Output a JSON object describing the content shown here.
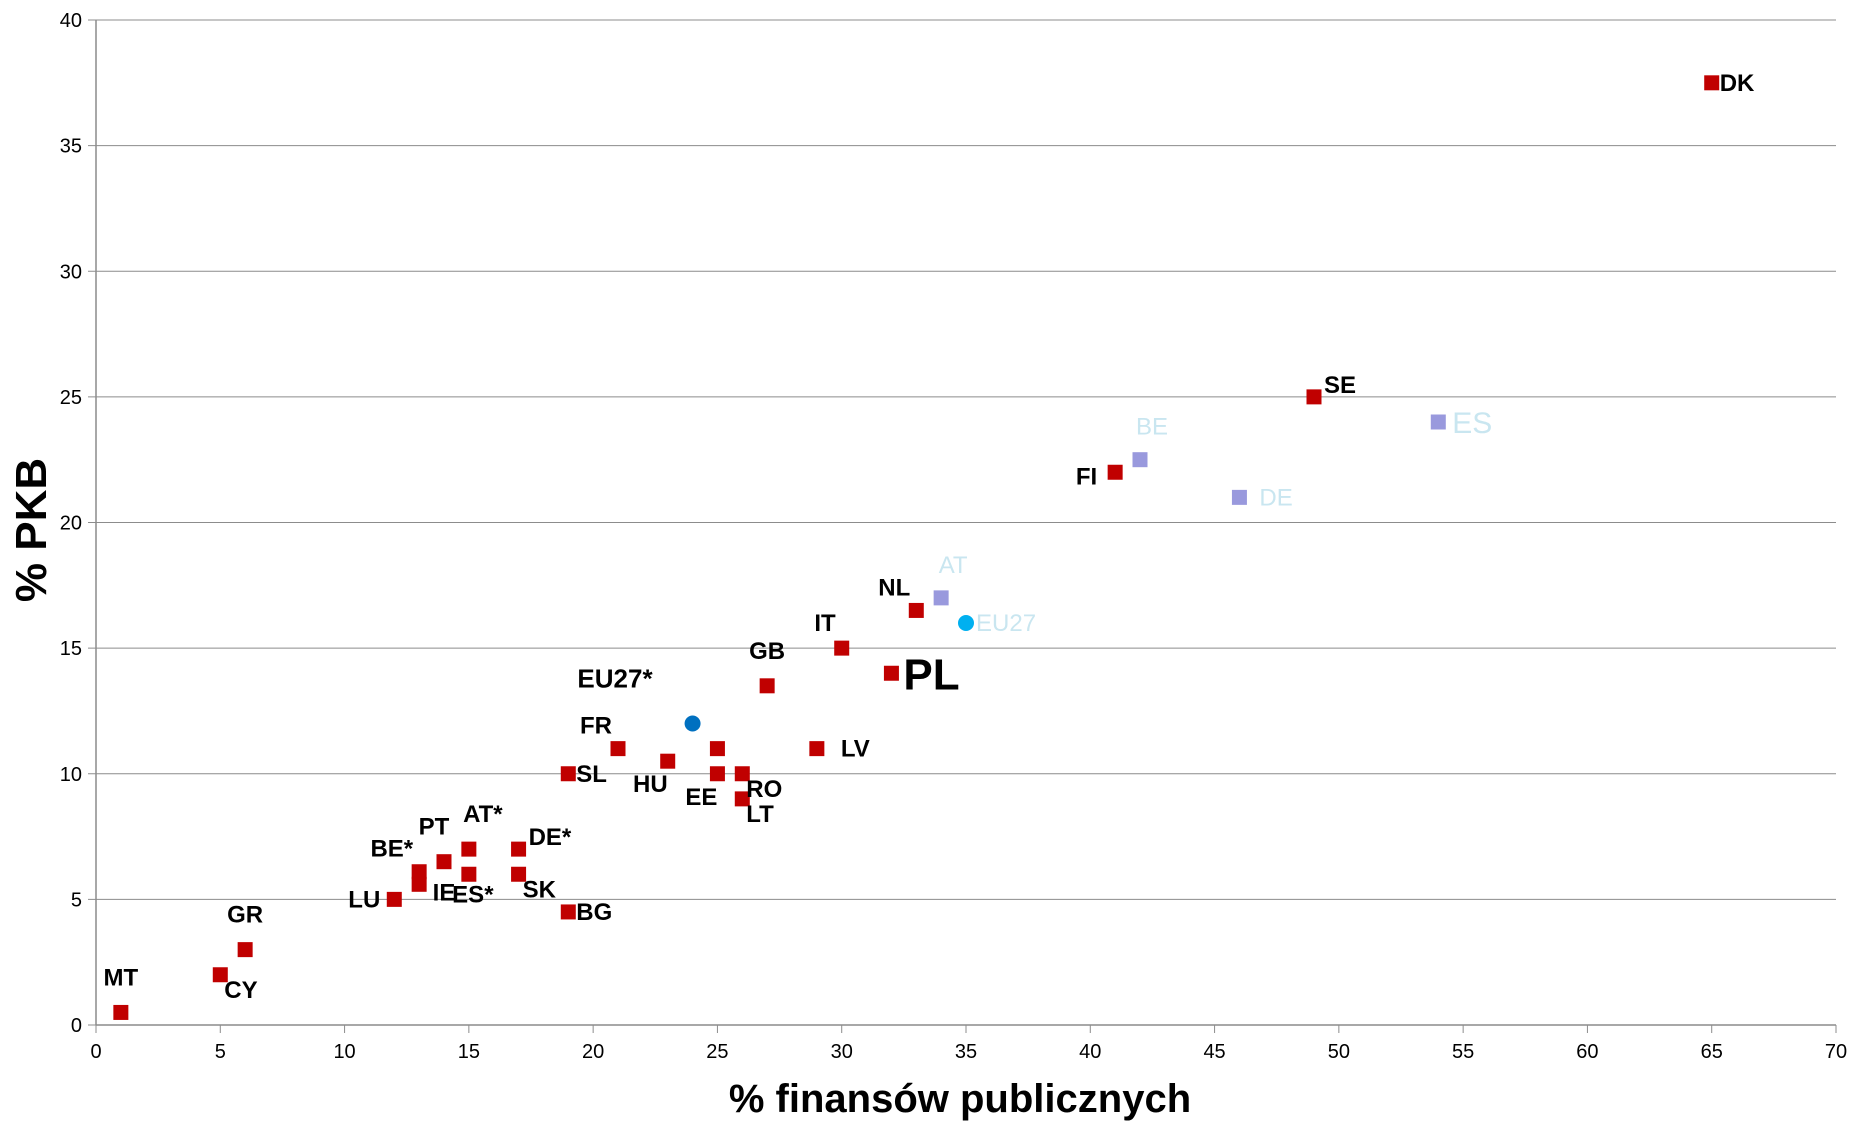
{
  "chart_data": {
    "type": "scatter",
    "xlabel": "% finansów publicznych",
    "ylabel": "% PKB",
    "xlim": [
      0,
      70
    ],
    "ylim": [
      0,
      40
    ],
    "x_ticks": [
      0,
      5,
      10,
      15,
      20,
      25,
      30,
      35,
      40,
      45,
      50,
      55,
      60,
      65,
      70
    ],
    "y_ticks": [
      0,
      5,
      10,
      15,
      20,
      25,
      30,
      35,
      40
    ],
    "grid": "horizontal",
    "points": [
      {
        "label": "MT",
        "x": 1,
        "y": 0.5,
        "marker": "square",
        "color": "#c00000",
        "label_pos": "above"
      },
      {
        "label": "CY",
        "x": 5,
        "y": 2,
        "marker": "square",
        "color": "#c00000",
        "label_pos": "right-below"
      },
      {
        "label": "GR",
        "x": 6,
        "y": 3,
        "marker": "square",
        "color": "#c00000",
        "label_pos": "above"
      },
      {
        "label": "LU",
        "x": 12,
        "y": 5,
        "marker": "square",
        "color": "#c00000",
        "label_pos": "left"
      },
      {
        "label": "",
        "x": 13,
        "y": 5.6,
        "marker": "square",
        "color": "#c00000",
        "label_pos": "none"
      },
      {
        "label": "BE*",
        "x": 13,
        "y": 6.1,
        "marker": "square",
        "color": "#c00000",
        "label_pos": "left-above"
      },
      {
        "label": "IE",
        "x": 14,
        "y": 6.5,
        "marker": "square",
        "color": "#c00000",
        "label_pos": "below-far"
      },
      {
        "label": "PT",
        "x": 14,
        "y": 6.5,
        "marker": "none",
        "color": "#c00000",
        "label_pos": "above"
      },
      {
        "label": "ES*",
        "x": 15,
        "y": 6,
        "marker": "square",
        "color": "#c00000",
        "label_pos": "below"
      },
      {
        "label": "AT*",
        "x": 15,
        "y": 7,
        "marker": "square",
        "color": "#c00000",
        "label_pos": "above"
      },
      {
        "label": "SK",
        "x": 17,
        "y": 6,
        "marker": "square",
        "color": "#c00000",
        "label_pos": "right-below"
      },
      {
        "label": "DE*",
        "x": 17,
        "y": 7,
        "marker": "square",
        "color": "#c00000",
        "label_pos": "right-above"
      },
      {
        "label": "BG",
        "x": 19,
        "y": 4.5,
        "marker": "square",
        "color": "#c00000",
        "label_pos": "right"
      },
      {
        "label": "SL",
        "x": 19,
        "y": 10,
        "marker": "square",
        "color": "#c00000",
        "label_pos": "right"
      },
      {
        "label": "FR",
        "x": 21,
        "y": 11,
        "marker": "square",
        "color": "#c00000",
        "label_pos": "left-above"
      },
      {
        "label": "HU",
        "x": 23,
        "y": 10.5,
        "marker": "square",
        "color": "#c00000",
        "label_pos": "left-below"
      },
      {
        "label": "",
        "x": 25,
        "y": 11,
        "marker": "square",
        "color": "#c00000",
        "label_pos": "none"
      },
      {
        "label": "EE",
        "x": 25,
        "y": 10,
        "marker": "square",
        "color": "#c00000",
        "label_pos": "left-below"
      },
      {
        "label": "RO",
        "x": 26,
        "y": 10,
        "marker": "square",
        "color": "#c00000",
        "label_pos": "right-below"
      },
      {
        "label": "LT",
        "x": 26,
        "y": 9,
        "marker": "square",
        "color": "#c00000",
        "label_pos": "right-below"
      },
      {
        "label": "GB",
        "x": 27,
        "y": 13.5,
        "marker": "square",
        "color": "#c00000",
        "label_pos": "above"
      },
      {
        "label": "LV",
        "x": 29,
        "y": 11,
        "marker": "square",
        "color": "#c00000",
        "label_pos": "right-far"
      },
      {
        "label": "IT",
        "x": 30,
        "y": 15,
        "marker": "square",
        "color": "#c00000",
        "label_pos": "left-above"
      },
      {
        "label": "PL",
        "x": 32,
        "y": 14,
        "marker": "square",
        "color": "#c00000",
        "label_pos": "right-big"
      },
      {
        "label": "NL",
        "x": 33,
        "y": 16.5,
        "marker": "square",
        "color": "#c00000",
        "label_pos": "left-above"
      },
      {
        "label": "FI",
        "x": 41,
        "y": 22,
        "marker": "square",
        "color": "#c00000",
        "label_pos": "left"
      },
      {
        "label": "SE",
        "x": 49,
        "y": 25,
        "marker": "square",
        "color": "#c00000",
        "label_pos": "right-above"
      },
      {
        "label": "DK",
        "x": 65,
        "y": 37.5,
        "marker": "square",
        "color": "#c00000",
        "label_pos": "right"
      },
      {
        "label": "EU27*",
        "x": 24,
        "y": 12,
        "marker": "circle",
        "color": "#0070c0",
        "label_pos": "left-above-far"
      },
      {
        "label": "AT",
        "x": 34,
        "y": 17,
        "marker": "square",
        "color": "#9999dd",
        "label_pos": "above-faded"
      },
      {
        "label": "EU27",
        "x": 35,
        "y": 16,
        "marker": "circle",
        "color": "#00b0f0",
        "label_pos": "right-faded"
      },
      {
        "label": "BE",
        "x": 42,
        "y": 22.5,
        "marker": "square",
        "color": "#9999dd",
        "label_pos": "above-faded"
      },
      {
        "label": "DE",
        "x": 46,
        "y": 21,
        "marker": "square",
        "color": "#9999dd",
        "label_pos": "right-faded"
      },
      {
        "label": "ES",
        "x": 54,
        "y": 24,
        "marker": "square",
        "color": "#9999dd",
        "label_pos": "right-faded-big"
      }
    ]
  }
}
